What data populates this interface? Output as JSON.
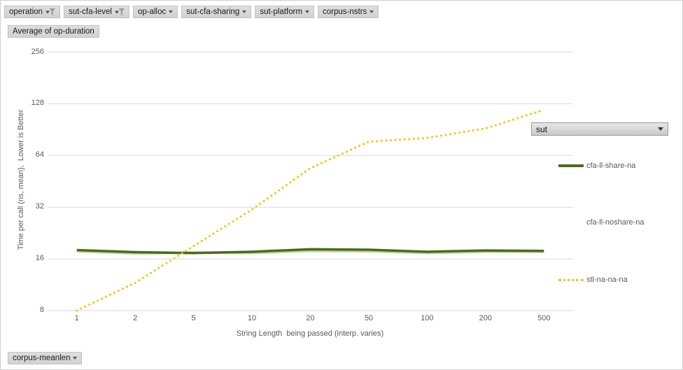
{
  "pivot": {
    "filter_buttons": [
      {
        "label": "operation",
        "icon": "filter-funnel"
      },
      {
        "label": "sut-cfa-level",
        "icon": "filter-funnel"
      },
      {
        "label": "op-alloc",
        "icon": "dropdown-arrow"
      },
      {
        "label": "sut-cfa-sharing",
        "icon": "dropdown-arrow"
      },
      {
        "label": "sut-platform",
        "icon": "dropdown-arrow"
      },
      {
        "label": "corpus-nstrs",
        "icon": "dropdown-arrow"
      }
    ],
    "value_field_button": "Average of op-duration",
    "axis_field_button": "corpus-meanlen",
    "legend_field_dropdown": "sut"
  },
  "chart_data": {
    "type": "line",
    "title": "",
    "categories": [
      "1",
      "2",
      "5",
      "10",
      "20",
      "50",
      "100",
      "200",
      "500"
    ],
    "xlabel": "String Length  being passed (interp. varies)",
    "ylabel": "Time per call (ns, mean),  Lower is Better",
    "yscale": "log2",
    "ylim": [
      8,
      256
    ],
    "yticks": [
      256,
      128,
      64,
      32,
      16,
      8
    ],
    "grid": true,
    "grid_color": "#d9d9d9",
    "tick_color": "#595959",
    "legend_position": "right",
    "series": [
      {
        "name": "cfa-ll-noshare-na",
        "color": "#c3d69b",
        "style": "solid",
        "values": [
          17.7,
          17.2,
          17.4,
          17.3,
          17.8,
          17.7,
          17.3,
          17.6,
          17.6
        ]
      },
      {
        "name": "cfa-ll-share-na",
        "color": "#4a6b1d",
        "style": "solid",
        "values": [
          18.0,
          17.5,
          17.3,
          17.6,
          18.2,
          18.1,
          17.6,
          17.9,
          17.8
        ]
      },
      {
        "name": "stl-na-na-na",
        "color": "#ffc000",
        "style": "dotted",
        "values": [
          8,
          11.6,
          19,
          31,
          54,
          77,
          81,
          92,
          118
        ]
      }
    ]
  }
}
